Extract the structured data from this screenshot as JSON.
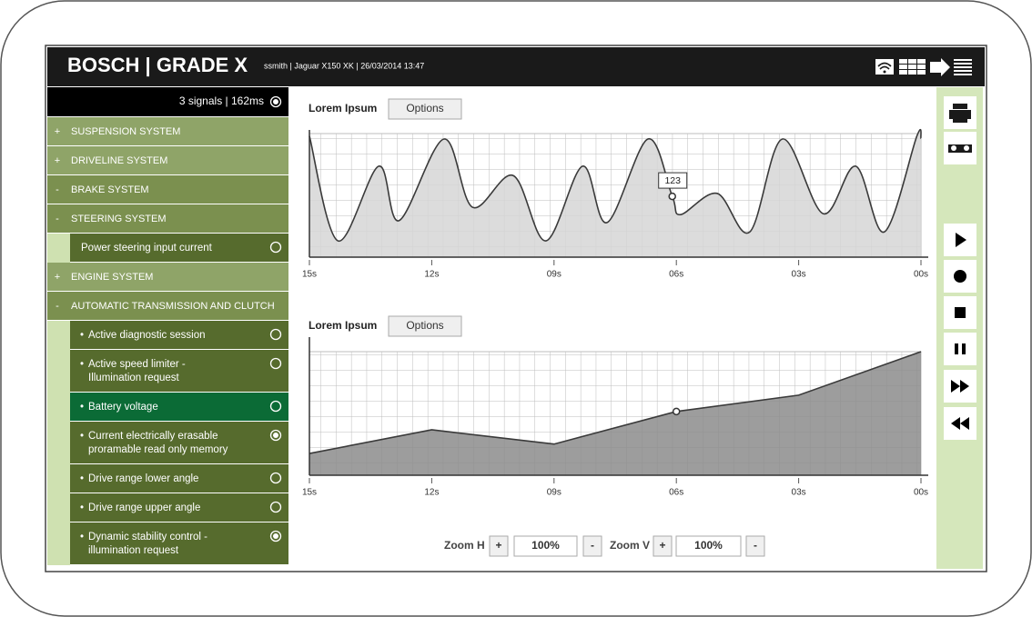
{
  "header": {
    "brand": "BOSCH | GRADE X",
    "info": "ssmith |  Jaguar X150 XK | 26/03/2014 13:47"
  },
  "sidebar": {
    "status": "3 signals  | 162ms",
    "status_checked": true,
    "items": [
      {
        "prefix": "+",
        "label": [
          "SUSPENSION SYSTEM"
        ],
        "level": 0
      },
      {
        "prefix": "+",
        "label": [
          "DRIVELINE SYSTEM"
        ],
        "level": 0
      },
      {
        "prefix": "-",
        "label": [
          "BRAKE SYSTEM"
        ],
        "level": 0
      },
      {
        "prefix": "-",
        "label": [
          "STEERING SYSTEM"
        ],
        "level": 0
      },
      {
        "label": [
          "Power steering input current"
        ],
        "level": 1,
        "checked": false
      },
      {
        "prefix": "+",
        "label": [
          "ENGINE SYSTEM"
        ],
        "level": 0
      },
      {
        "prefix": "-",
        "label": [
          "AUTOMATIC TRANSMISSION AND CLUTCH"
        ],
        "level": 0
      },
      {
        "prefix": "•",
        "label": [
          "Active diagnostic session"
        ],
        "level": 1,
        "checked": false
      },
      {
        "prefix": "•",
        "label": [
          "Active speed limiter -",
          "Illumination request"
        ],
        "level": 1,
        "checked": false
      },
      {
        "prefix": "•",
        "label": [
          "Battery voltage"
        ],
        "level": 1,
        "checked": false,
        "selected": true
      },
      {
        "prefix": "•",
        "label": [
          "Current electrically erasable",
          "proramable read only memory"
        ],
        "level": 1,
        "checked": true
      },
      {
        "prefix": "•",
        "label": [
          "Drive range lower angle"
        ],
        "level": 1,
        "checked": false
      },
      {
        "prefix": "•",
        "label": [
          "Drive range upper angle"
        ],
        "level": 1,
        "checked": false
      },
      {
        "prefix": "•",
        "label": [
          "Dynamic stability control -",
          "illumination request"
        ],
        "level": 1,
        "checked": true
      }
    ]
  },
  "chart_data": [
    {
      "type": "area",
      "smooth": true,
      "title": "Lorem Ipsum",
      "button": "Options",
      "x": [
        15,
        14.3,
        13.3,
        12.8,
        11.7,
        11.0,
        10.0,
        9.2,
        8.3,
        7.7,
        6.7,
        6.1,
        5.9,
        5.0,
        4.2,
        3.4,
        2.4,
        1.6,
        0.9,
        0.1,
        0
      ],
      "values": [
        245,
        33,
        184,
        74,
        239,
        101,
        165,
        33,
        184,
        70,
        239,
        123,
        86,
        129,
        51,
        239,
        88,
        184,
        51,
        245,
        240
      ],
      "highlight_index": 11,
      "highlight_label": true,
      "color": "#d6d6d6",
      "line_color": "#3a3a3a",
      "xlim": [
        15,
        0
      ],
      "ylim": [
        0,
        250
      ],
      "xticks": [
        {
          "value": 15,
          "label": "15s"
        },
        {
          "value": 12,
          "label": "12s"
        },
        {
          "value": 9,
          "label": "09s"
        },
        {
          "value": 6,
          "label": "06s"
        },
        {
          "value": 3,
          "label": "03s"
        },
        {
          "value": 0,
          "label": "00s"
        }
      ],
      "grid": true
    },
    {
      "type": "area",
      "smooth": false,
      "title": "Lorem Ipsum",
      "button": "Options",
      "x": [
        15,
        12,
        9,
        6,
        3,
        0
      ],
      "values": [
        44,
        92,
        63,
        129,
        162,
        250
      ],
      "highlight_index": 3,
      "highlight_label": false,
      "color": "#8c8c8c",
      "line_color": "#3a3a3a",
      "xlim": [
        15,
        0
      ],
      "ylim": [
        0,
        250
      ],
      "xticks": [
        {
          "value": 15,
          "label": "15s"
        },
        {
          "value": 12,
          "label": "12s"
        },
        {
          "value": 9,
          "label": "09s"
        },
        {
          "value": 6,
          "label": "06s"
        },
        {
          "value": 3,
          "label": "03s"
        },
        {
          "value": 0,
          "label": "00s"
        }
      ],
      "grid": true
    }
  ],
  "zoom": {
    "h": {
      "label": "Zoom H",
      "plus": "+",
      "value": "100%",
      "minus": "-"
    },
    "v": {
      "label": "Zoom V",
      "plus": "+",
      "value": "100%",
      "minus": "-"
    }
  }
}
